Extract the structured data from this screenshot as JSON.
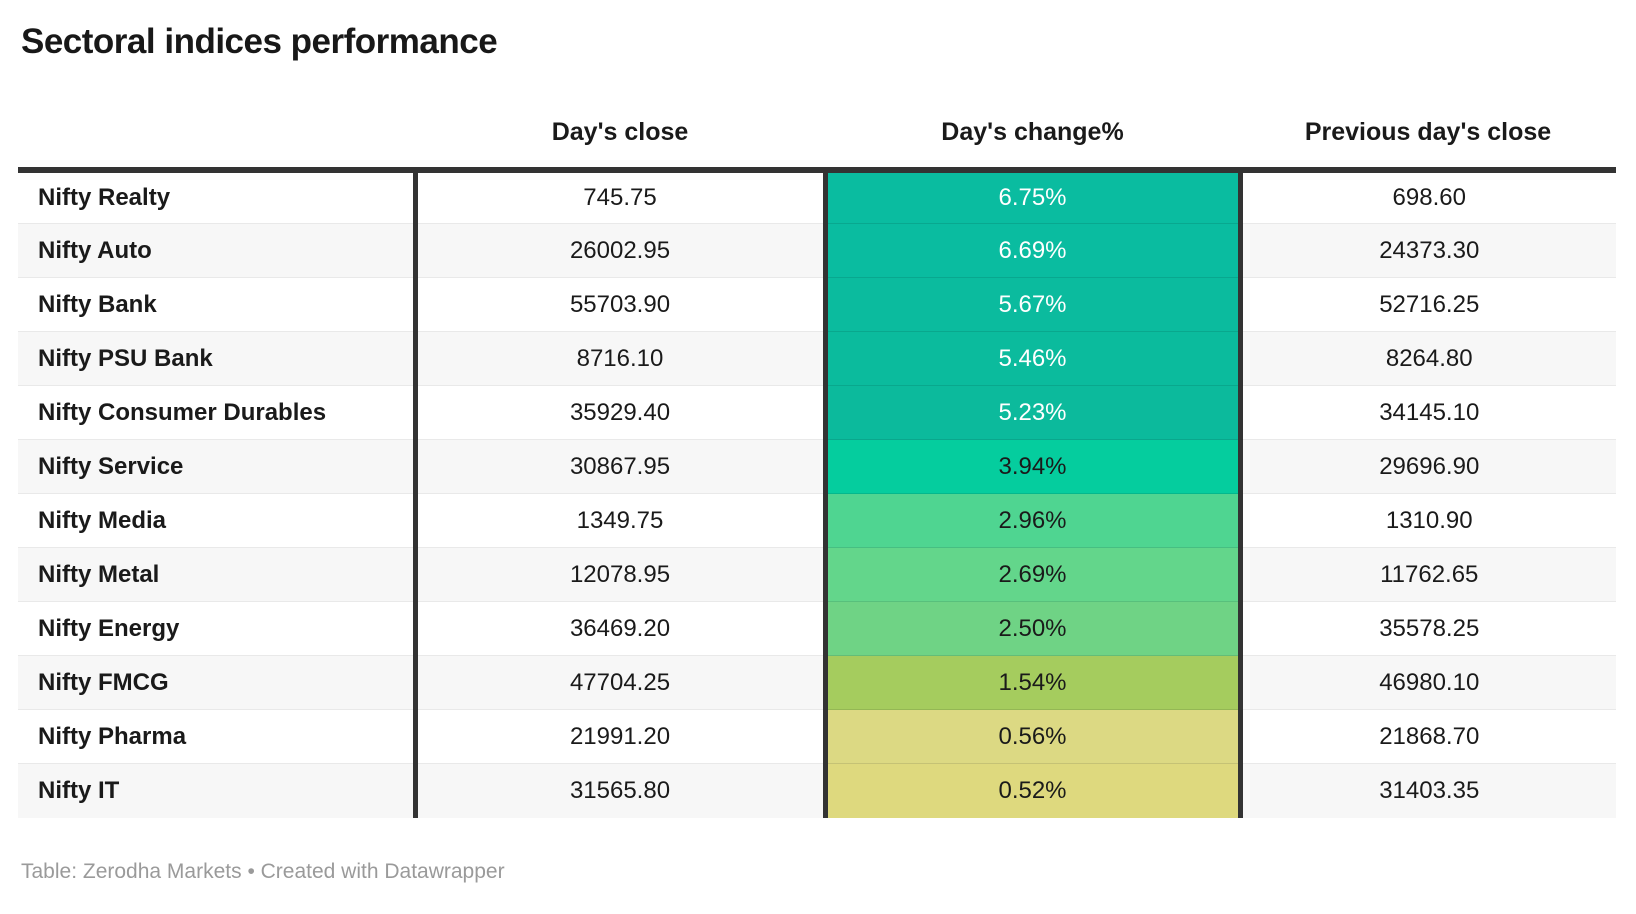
{
  "title": "Sectoral indices performance",
  "table": {
    "columns": [
      "",
      "Day's close",
      "Day's change%",
      "Previous day's close"
    ],
    "rows": [
      {
        "label": "Nifty Realty",
        "close": "745.75",
        "change": "6.75%",
        "prev": "698.60",
        "cell_color": "#0abca0",
        "text_color": "#ffffff"
      },
      {
        "label": "Nifty Auto",
        "close": "26002.95",
        "change": "6.69%",
        "prev": "24373.30",
        "cell_color": "#0abca0",
        "text_color": "#ffffff"
      },
      {
        "label": "Nifty Bank",
        "close": "55703.90",
        "change": "5.67%",
        "prev": "52716.25",
        "cell_color": "#0bbb9e",
        "text_color": "#ffffff"
      },
      {
        "label": "Nifty PSU Bank",
        "close": "8716.10",
        "change": "5.46%",
        "prev": "8264.80",
        "cell_color": "#0bbb9d",
        "text_color": "#ffffff"
      },
      {
        "label": "Nifty Consumer Durables",
        "close": "35929.40",
        "change": "5.23%",
        "prev": "34145.10",
        "cell_color": "#0cba9c",
        "text_color": "#ffffff"
      },
      {
        "label": "Nifty Service",
        "close": "30867.95",
        "change": "3.94%",
        "prev": "29696.90",
        "cell_color": "#05cd9e",
        "text_color": "#1a1a1a"
      },
      {
        "label": "Nifty Media",
        "close": "1349.75",
        "change": "2.96%",
        "prev": "1310.90",
        "cell_color": "#4fd591",
        "text_color": "#1a1a1a"
      },
      {
        "label": "Nifty Metal",
        "close": "12078.95",
        "change": "2.69%",
        "prev": "11762.65",
        "cell_color": "#63d68b",
        "text_color": "#1a1a1a"
      },
      {
        "label": "Nifty Energy",
        "close": "36469.20",
        "change": "2.50%",
        "prev": "35578.25",
        "cell_color": "#6fd385",
        "text_color": "#1a1a1a"
      },
      {
        "label": "Nifty FMCG",
        "close": "47704.25",
        "change": "1.54%",
        "prev": "46980.10",
        "cell_color": "#a5cc5e",
        "text_color": "#1a1a1a"
      },
      {
        "label": "Nifty Pharma",
        "close": "21991.20",
        "change": "0.56%",
        "prev": "21868.70",
        "cell_color": "#dcd983",
        "text_color": "#1a1a1a"
      },
      {
        "label": "Nifty IT",
        "close": "31565.80",
        "change": "0.52%",
        "prev": "31403.35",
        "cell_color": "#ded97e",
        "text_color": "#1a1a1a"
      }
    ]
  },
  "footer": {
    "prefix": "Table: ",
    "source": "Zerodha Markets",
    "separator": " • ",
    "attribution": "Created with Datawrapper"
  },
  "style_colors": {
    "header_rule": "#333333",
    "row_stripe": "#f7f7f7",
    "row_divider": "#e9e9e9",
    "footer_text": "#9a9a9a"
  },
  "chart_data": {
    "type": "table",
    "title": "Sectoral indices performance",
    "columns": [
      "",
      "Day's close",
      "Day's change%",
      "Previous day's close"
    ],
    "heatmap_column": "Day's change%",
    "color_scale": "teal-green to yellow (high to low)",
    "rows": [
      [
        "Nifty Realty",
        745.75,
        6.75,
        698.6
      ],
      [
        "Nifty Auto",
        26002.95,
        6.69,
        24373.3
      ],
      [
        "Nifty Bank",
        55703.9,
        5.67,
        52716.25
      ],
      [
        "Nifty PSU Bank",
        8716.1,
        5.46,
        8264.8
      ],
      [
        "Nifty Consumer Durables",
        35929.4,
        5.23,
        34145.1
      ],
      [
        "Nifty Service",
        30867.95,
        3.94,
        29696.9
      ],
      [
        "Nifty Media",
        1349.75,
        2.96,
        1310.9
      ],
      [
        "Nifty Metal",
        12078.95,
        2.69,
        11762.65
      ],
      [
        "Nifty Energy",
        36469.2,
        2.5,
        35578.25
      ],
      [
        "Nifty FMCG",
        47704.25,
        1.54,
        46980.1
      ],
      [
        "Nifty Pharma",
        21991.2,
        0.56,
        21868.7
      ],
      [
        "Nifty IT",
        31565.8,
        0.52,
        31403.35
      ]
    ]
  }
}
